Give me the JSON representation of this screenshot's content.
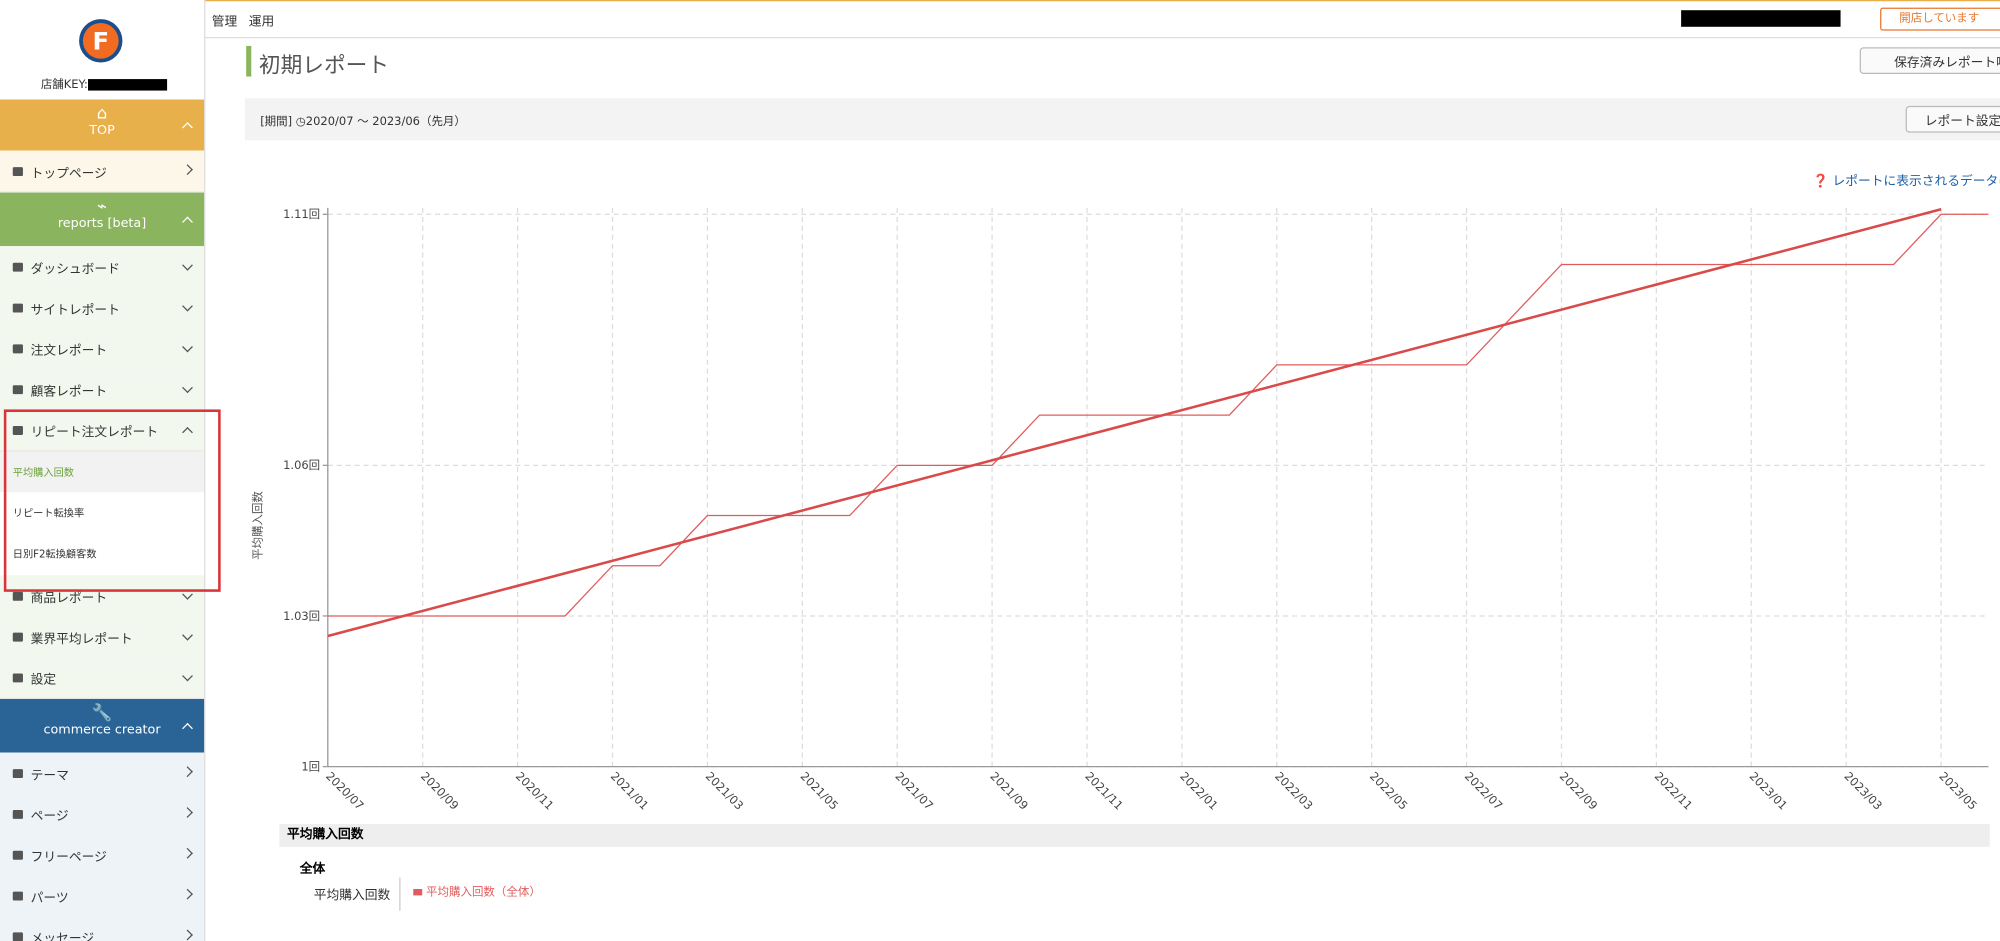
{
  "logo": "F",
  "sidebar": {
    "store_key_label": "店舗KEY:",
    "top": {
      "title": "TOP",
      "items": [
        "トップページ"
      ]
    },
    "reports": {
      "title": "reports [beta]",
      "items": [
        "ダッシュボード",
        "サイトレポート",
        "注文レポート",
        "顧客レポート",
        "リピート注文レポート",
        "商品レポート",
        "業界平均レポート",
        "設定"
      ],
      "submenu": [
        "平均購入回数",
        "リピート転換率",
        "日別F2転換顧客数"
      ]
    },
    "creator": {
      "title": "commerce creator",
      "items": [
        "テーマ",
        "ページ",
        "フリーページ",
        "パーツ",
        "メッセージ"
      ]
    }
  },
  "topbar": {
    "menu": [
      "管理",
      "運用"
    ],
    "store_status": "開店しています"
  },
  "report": {
    "title": "初期レポート",
    "saved_button": "保存済みレポート呼",
    "period_label": "[期間]",
    "period": "2020/07 〜 2023/06（先月）",
    "settings_button": "レポート設定",
    "help_link": "レポートに表示されるデータに"
  },
  "chart_data": {
    "type": "line",
    "y_label": "平均購入回数",
    "categories": [
      "2020/07",
      null,
      "2020/09",
      null,
      "2020/11",
      null,
      "2021/01",
      null,
      "2021/03",
      null,
      "2021/05",
      null,
      "2021/07",
      null,
      "2021/09",
      null,
      "2021/11",
      null,
      "2022/01",
      null,
      "2022/03",
      null,
      "2022/05",
      null,
      "2022/07",
      null,
      "2022/09",
      null,
      "2022/11",
      null,
      "2023/01",
      null,
      "2023/03",
      null,
      "2023/05",
      null
    ],
    "series": [
      {
        "name": "平均購入回数（全体）",
        "color": "#e05c5c",
        "values": [
          1.03,
          1.03,
          1.03,
          1.03,
          1.03,
          1.03,
          1.04,
          1.04,
          1.05,
          1.05,
          1.05,
          1.05,
          1.06,
          1.06,
          1.06,
          1.07,
          1.07,
          1.07,
          1.07,
          1.07,
          1.08,
          1.08,
          1.08,
          1.08,
          1.08,
          1.09,
          1.1,
          1.1,
          1.1,
          1.1,
          1.1,
          1.1,
          1.1,
          1.1,
          1.11,
          1.11
        ]
      }
    ],
    "trendline": {
      "x": [
        "2020/07",
        "2023/05"
      ],
      "values": [
        1.026,
        1.111
      ],
      "color": "#d94a4a"
    },
    "ylim": [
      1,
      1.11
    ],
    "yticks": [
      {
        "value": 1,
        "label": "1回"
      },
      {
        "value": 1.03,
        "label": "1.03回"
      },
      {
        "value": 1.06,
        "label": "1.06回"
      },
      {
        "value": 1.11,
        "label": "1.11回"
      }
    ],
    "grid": true
  },
  "summary": {
    "heading": "平均購入回数",
    "group": "全体",
    "row_label": "平均購入回数"
  }
}
